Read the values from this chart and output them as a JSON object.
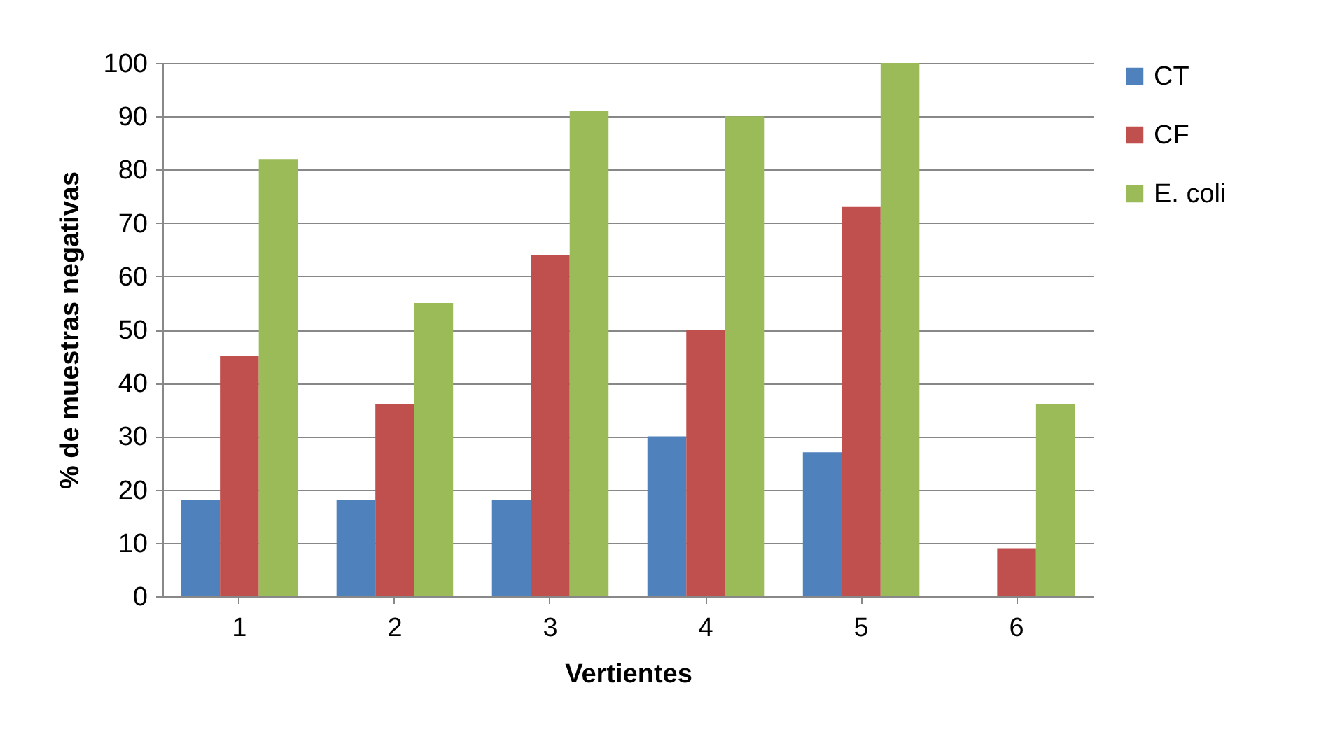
{
  "chart_data": {
    "type": "bar",
    "xlabel": "Vertientes",
    "ylabel": "% de muestras negativas",
    "categories": [
      "1",
      "2",
      "3",
      "4",
      "5",
      "6"
    ],
    "series": [
      {
        "name": "CT",
        "color": "#4f81bd",
        "values": [
          18,
          18,
          18,
          30,
          27,
          0
        ]
      },
      {
        "name": "CF",
        "color": "#c0504d",
        "values": [
          45,
          36,
          64,
          50,
          73,
          9
        ]
      },
      {
        "name": "E. coli",
        "color": "#9bbb59",
        "values": [
          82,
          55,
          91,
          90,
          100,
          36
        ]
      }
    ],
    "ylim": [
      0,
      100
    ],
    "yticks": [
      0,
      10,
      20,
      30,
      40,
      50,
      60,
      70,
      80,
      90,
      100
    ],
    "grid": "y",
    "legend": "right"
  }
}
